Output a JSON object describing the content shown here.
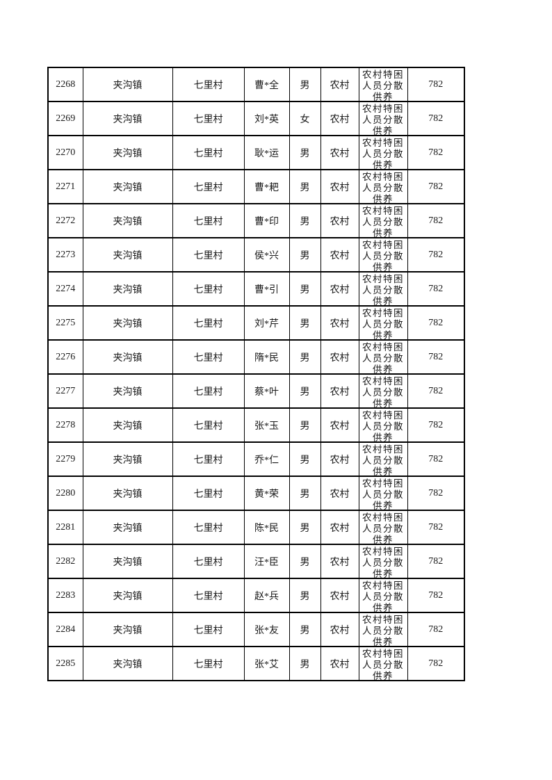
{
  "page": {
    "background_color": "#ffffff",
    "border_color": "#000000",
    "text_color": "#1a1a1a"
  },
  "table": {
    "column_keys": [
      "seq",
      "town",
      "village",
      "name",
      "gender",
      "area",
      "category",
      "amount"
    ],
    "rows": [
      [
        "2268",
        "夹沟镇",
        "七里村",
        "曹*全",
        "男",
        "农村",
        "农村特困人员分散供养",
        "782"
      ],
      [
        "2269",
        "夹沟镇",
        "七里村",
        "刘*英",
        "女",
        "农村",
        "农村特困人员分散供养",
        "782"
      ],
      [
        "2270",
        "夹沟镇",
        "七里村",
        "耿*运",
        "男",
        "农村",
        "农村特困人员分散供养",
        "782"
      ],
      [
        "2271",
        "夹沟镇",
        "七里村",
        "曹*耙",
        "男",
        "农村",
        "农村特困人员分散供养",
        "782"
      ],
      [
        "2272",
        "夹沟镇",
        "七里村",
        "曹*印",
        "男",
        "农村",
        "农村特困人员分散供养",
        "782"
      ],
      [
        "2273",
        "夹沟镇",
        "七里村",
        "侯*兴",
        "男",
        "农村",
        "农村特困人员分散供养",
        "782"
      ],
      [
        "2274",
        "夹沟镇",
        "七里村",
        "曹*引",
        "男",
        "农村",
        "农村特困人员分散供养",
        "782"
      ],
      [
        "2275",
        "夹沟镇",
        "七里村",
        "刘*芹",
        "男",
        "农村",
        "农村特困人员分散供养",
        "782"
      ],
      [
        "2276",
        "夹沟镇",
        "七里村",
        "隋*民",
        "男",
        "农村",
        "农村特困人员分散供养",
        "782"
      ],
      [
        "2277",
        "夹沟镇",
        "七里村",
        "蔡*叶",
        "男",
        "农村",
        "农村特困人员分散供养",
        "782"
      ],
      [
        "2278",
        "夹沟镇",
        "七里村",
        "张*玉",
        "男",
        "农村",
        "农村特困人员分散供养",
        "782"
      ],
      [
        "2279",
        "夹沟镇",
        "七里村",
        "乔*仁",
        "男",
        "农村",
        "农村特困人员分散供养",
        "782"
      ],
      [
        "2280",
        "夹沟镇",
        "七里村",
        "黄*荣",
        "男",
        "农村",
        "农村特困人员分散供养",
        "782"
      ],
      [
        "2281",
        "夹沟镇",
        "七里村",
        "陈*民",
        "男",
        "农村",
        "农村特困人员分散供养",
        "782"
      ],
      [
        "2282",
        "夹沟镇",
        "七里村",
        "汪*臣",
        "男",
        "农村",
        "农村特困人员分散供养",
        "782"
      ],
      [
        "2283",
        "夹沟镇",
        "七里村",
        "赵*兵",
        "男",
        "农村",
        "农村特困人员分散供养",
        "782"
      ],
      [
        "2284",
        "夹沟镇",
        "七里村",
        "张*友",
        "男",
        "农村",
        "农村特困人员分散供养",
        "782"
      ],
      [
        "2285",
        "夹沟镇",
        "七里村",
        "张*艾",
        "男",
        "农村",
        "农村特困人员分散供养",
        "782"
      ]
    ]
  }
}
